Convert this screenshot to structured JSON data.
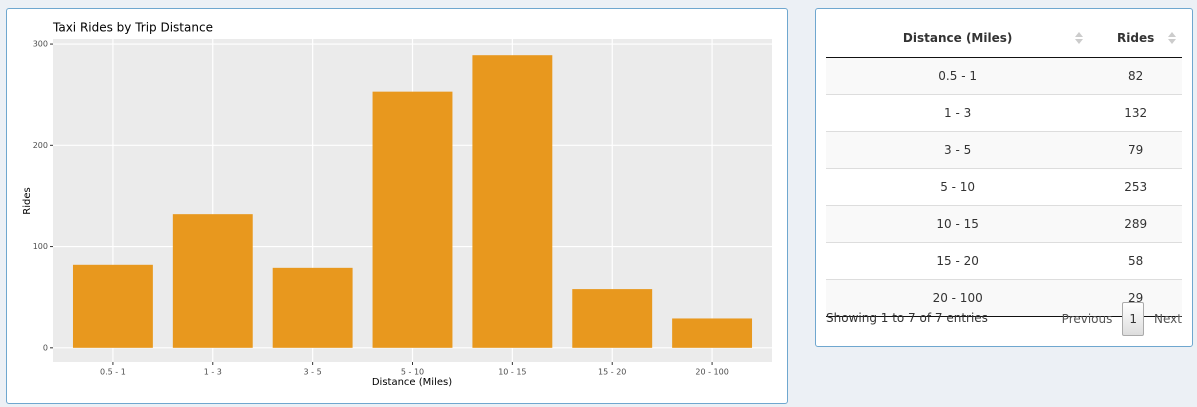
{
  "chart_data": {
    "type": "bar",
    "title": "Taxi Rides by Trip Distance",
    "x_label": "Distance (Miles)",
    "y_label": "Rides",
    "categories": [
      "0.5 - 1",
      "1 - 3",
      "3 - 5",
      "5 - 10",
      "10 - 15",
      "15 - 20",
      "20 - 100"
    ],
    "values": [
      82,
      132,
      79,
      253,
      289,
      58,
      29
    ],
    "color": "#e8981e",
    "ylim": [
      -14,
      305
    ],
    "yticks": [
      0,
      100,
      200,
      300
    ],
    "grid": true
  },
  "table": {
    "headers": [
      "Distance (Miles)",
      "Rides"
    ],
    "rows": [
      [
        "0.5 - 1",
        "82"
      ],
      [
        "1 - 3",
        "132"
      ],
      [
        "3 - 5",
        "79"
      ],
      [
        "5 - 10",
        "253"
      ],
      [
        "10 - 15",
        "289"
      ],
      [
        "15 - 20",
        "58"
      ],
      [
        "20 - 100",
        "29"
      ]
    ],
    "info": "Showing 1 to 7 of 7 entries",
    "previous": "Previous",
    "page": 1,
    "next": "Next"
  }
}
